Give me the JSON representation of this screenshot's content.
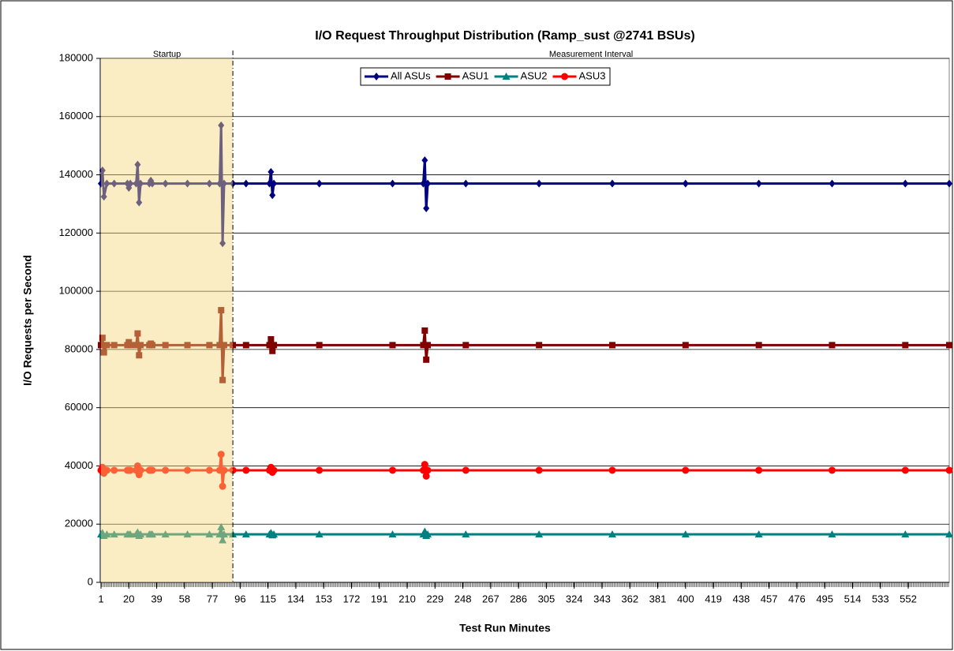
{
  "chart_data": {
    "type": "line",
    "title": "I/O Request Throughput Distribution (Ramp_sust @2741 BSUs)",
    "x_label": "Test Run Minutes",
    "y_label": "I/O Requests per Second",
    "intervals": [
      {
        "label": "Startup",
        "start": 1,
        "end": 91
      },
      {
        "label": "Measurement Interval",
        "start": 91,
        "end": 580
      }
    ],
    "x": [
      1,
      2,
      3,
      5,
      10,
      19,
      20,
      21,
      25,
      26,
      27,
      28,
      34,
      35,
      36,
      45,
      60,
      75,
      82,
      83,
      84,
      85,
      91,
      100,
      116,
      117,
      118,
      119,
      150,
      200,
      221,
      222,
      223,
      224,
      250,
      300,
      350,
      400,
      450,
      500,
      550,
      580
    ],
    "series": [
      {
        "name": "All ASUs",
        "color": "#000080",
        "marker": "diamond",
        "values": [
          137000,
          141500,
          132500,
          137000,
          137000,
          137000,
          135500,
          137000,
          137000,
          143500,
          130500,
          137000,
          137000,
          138000,
          137000,
          137000,
          137000,
          137000,
          137000,
          157000,
          116500,
          137000,
          137000,
          137000,
          137000,
          141000,
          133000,
          137000,
          137000,
          137000,
          137000,
          145000,
          128500,
          137000,
          137000,
          137000,
          137000,
          137000,
          137000,
          137000,
          137000,
          137000
        ]
      },
      {
        "name": "ASU1",
        "color": "#800000",
        "marker": "square",
        "values": [
          81500,
          84000,
          79000,
          81500,
          81500,
          81500,
          82500,
          81500,
          81500,
          85500,
          78000,
          81500,
          81500,
          82000,
          81500,
          81500,
          81500,
          81500,
          81500,
          93500,
          69500,
          81500,
          81500,
          81500,
          81500,
          83500,
          79500,
          81500,
          81500,
          81500,
          81500,
          86500,
          76500,
          81500,
          81500,
          81500,
          81500,
          81500,
          81500,
          81500,
          81500,
          81500
        ]
      },
      {
        "name": "ASU2",
        "color": "#008080",
        "marker": "triangle",
        "values": [
          16500,
          17000,
          16000,
          16500,
          16500,
          16500,
          16500,
          16500,
          16500,
          17200,
          16000,
          16500,
          16500,
          16500,
          16500,
          16500,
          16500,
          16500,
          16500,
          19000,
          14500,
          16500,
          16500,
          16500,
          16500,
          17000,
          16200,
          16500,
          16500,
          16500,
          16500,
          17500,
          16000,
          16500,
          16500,
          16500,
          16500,
          16500,
          16500,
          16500,
          16500,
          16500
        ]
      },
      {
        "name": "ASU3",
        "color": "#ff0000",
        "marker": "circle",
        "values": [
          38500,
          39500,
          37500,
          38500,
          38500,
          38500,
          38500,
          38500,
          38500,
          40000,
          37000,
          38500,
          38500,
          38500,
          38500,
          38500,
          38500,
          38500,
          38500,
          44000,
          33000,
          38500,
          38500,
          38500,
          38500,
          39500,
          37800,
          38500,
          38500,
          38500,
          38500,
          40500,
          36500,
          38500,
          38500,
          38500,
          38500,
          38500,
          38500,
          38500,
          38500,
          38500
        ]
      }
    ],
    "xlim": [
      1,
      580
    ],
    "xticks": [
      1,
      20,
      39,
      58,
      77,
      96,
      115,
      134,
      153,
      172,
      191,
      210,
      229,
      248,
      267,
      286,
      305,
      324,
      343,
      362,
      381,
      400,
      419,
      438,
      457,
      476,
      495,
      514,
      533,
      552
    ],
    "ylim": [
      0,
      180000
    ],
    "yticks": [
      0,
      20000,
      40000,
      60000,
      80000,
      100000,
      120000,
      140000,
      160000,
      180000
    ],
    "grid": true,
    "legend": "top"
  }
}
